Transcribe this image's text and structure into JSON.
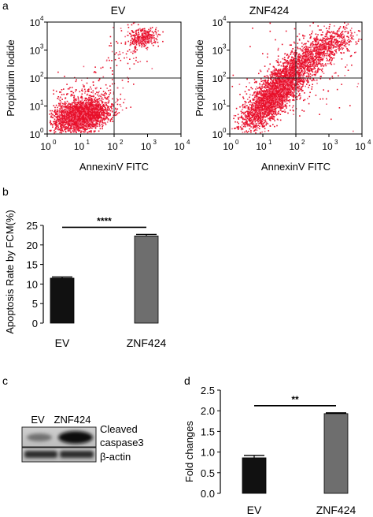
{
  "figure": {
    "panel_labels": [
      "a",
      "b",
      "c",
      "d"
    ]
  },
  "chart_data": [
    {
      "type": "scatter",
      "title": "EV",
      "xlabel": "AnnexinV FITC",
      "ylabel": "Propidium Iodide",
      "scale": "log",
      "xlim": [
        1,
        10000
      ],
      "ylim": [
        1,
        10000
      ],
      "ticks": [
        "10",
        "10",
        "10",
        "10",
        "10"
      ],
      "tick_exponents": [
        "0",
        "1",
        "2",
        "3",
        "4"
      ],
      "gate": [
        100,
        100
      ],
      "point_color": "#e8102a"
    },
    {
      "type": "scatter",
      "title": "ZNF424",
      "xlabel": "AnnexinV FITC",
      "ylabel": "Propidium Iodide",
      "scale": "log",
      "xlim": [
        1,
        10000
      ],
      "ylim": [
        1,
        10000
      ],
      "ticks": [
        "10",
        "10",
        "10",
        "10",
        "10"
      ],
      "tick_exponents": [
        "0",
        "1",
        "2",
        "3",
        "4"
      ],
      "gate": [
        100,
        100
      ],
      "point_color": "#e8102a"
    },
    {
      "type": "bar",
      "categories": [
        "EV",
        "ZNF424"
      ],
      "values": [
        11.5,
        22.3
      ],
      "errors": [
        0.3,
        0.4
      ],
      "ylabel": "Apoptosis Rate by FCM(%)",
      "ylim": [
        0,
        25
      ],
      "yticks": [
        "0",
        "5",
        "10",
        "15",
        "20",
        "25"
      ],
      "significance": "****",
      "colors": [
        "#111111",
        "#6e6e6e"
      ]
    },
    {
      "type": "bar",
      "categories": [
        "EV",
        "ZNF424"
      ],
      "values": [
        0.86,
        1.93
      ],
      "errors": [
        0.06,
        0.02
      ],
      "ylabel": "Fold changes",
      "ylim": [
        0,
        2.5
      ],
      "yticks": [
        "0.0",
        "0.5",
        "1.0",
        "1.5",
        "2.0",
        "2.5"
      ],
      "significance": "**",
      "colors": [
        "#111111",
        "#6e6e6e"
      ]
    }
  ],
  "blot": {
    "lanes": [
      "EV",
      "ZNF424"
    ],
    "bands": [
      "Cleaved caspase3",
      "β-actin"
    ],
    "band_label_lines": [
      [
        "Cleaved",
        "caspase3"
      ],
      [
        "β-actin"
      ]
    ]
  }
}
